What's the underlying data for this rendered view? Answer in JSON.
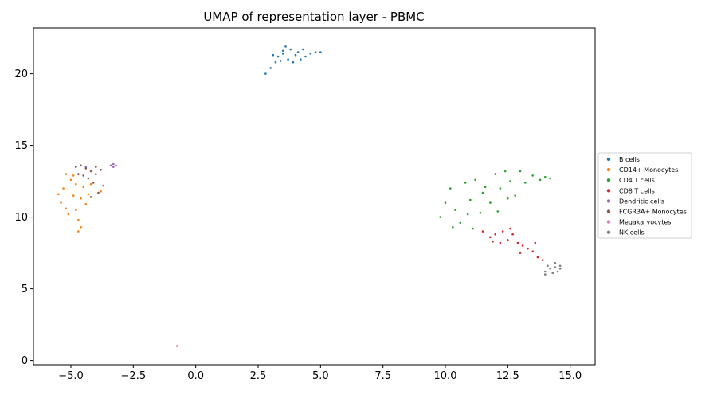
{
  "chart_data": {
    "type": "scatter",
    "title": "UMAP of representation layer - PBMC",
    "xlabel": "",
    "ylabel": "",
    "xlim": [
      -6.5,
      16.0
    ],
    "ylim": [
      -0.3,
      23.2
    ],
    "xticks": [
      -5.0,
      -2.5,
      0.0,
      2.5,
      5.0,
      7.5,
      10.0,
      12.5,
      15.0
    ],
    "xtick_labels": [
      "−5.0",
      "−2.5",
      "0.0",
      "2.5",
      "5.0",
      "7.5",
      "10.0",
      "12.5",
      "15.0"
    ],
    "yticks": [
      0,
      5,
      10,
      15,
      20
    ],
    "ytick_labels": [
      "0",
      "5",
      "10",
      "15",
      "20"
    ],
    "grid": false,
    "legend_position": "center-right outside",
    "series": [
      {
        "name": "B cells",
        "color": "#1f77b4",
        "points": [
          [
            2.8,
            20.0
          ],
          [
            3.0,
            20.4
          ],
          [
            3.2,
            20.8
          ],
          [
            3.3,
            21.2
          ],
          [
            3.5,
            21.6
          ],
          [
            3.6,
            21.9
          ],
          [
            3.8,
            21.7
          ],
          [
            4.0,
            21.3
          ],
          [
            4.2,
            21.0
          ],
          [
            4.4,
            21.2
          ],
          [
            4.6,
            21.4
          ],
          [
            4.8,
            21.5
          ],
          [
            5.0,
            21.5
          ],
          [
            3.4,
            20.9
          ],
          [
            3.7,
            21.0
          ],
          [
            3.9,
            20.8
          ],
          [
            4.1,
            21.5
          ],
          [
            3.1,
            21.3
          ],
          [
            3.5,
            21.4
          ],
          [
            4.3,
            21.7
          ]
        ]
      },
      {
        "name": "CD14+ Monocytes",
        "color": "#ff7f0e",
        "points": [
          [
            -5.4,
            11.0
          ],
          [
            -5.3,
            12.0
          ],
          [
            -5.2,
            13.0
          ],
          [
            -5.0,
            12.6
          ],
          [
            -4.9,
            11.5
          ],
          [
            -4.8,
            10.5
          ],
          [
            -4.7,
            9.8
          ],
          [
            -4.7,
            9.0
          ],
          [
            -4.6,
            9.3
          ],
          [
            -5.1,
            10.2
          ],
          [
            -4.5,
            12.1
          ],
          [
            -4.3,
            11.6
          ],
          [
            -4.4,
            10.9
          ],
          [
            -5.5,
            11.6
          ],
          [
            -4.9,
            12.9
          ],
          [
            -4.2,
            12.3
          ],
          [
            -3.8,
            11.8
          ],
          [
            -4.6,
            11.3
          ],
          [
            -5.2,
            10.6
          ],
          [
            -4.8,
            12.3
          ]
        ]
      },
      {
        "name": "CD4 T cells",
        "color": "#2ca02c",
        "points": [
          [
            9.8,
            10.0
          ],
          [
            10.0,
            11.0
          ],
          [
            10.2,
            12.0
          ],
          [
            10.4,
            10.5
          ],
          [
            10.6,
            9.6
          ],
          [
            10.8,
            12.4
          ],
          [
            11.0,
            11.2
          ],
          [
            11.2,
            12.6
          ],
          [
            11.4,
            10.3
          ],
          [
            11.6,
            12.1
          ],
          [
            11.8,
            11.0
          ],
          [
            12.0,
            13.0
          ],
          [
            12.2,
            12.0
          ],
          [
            12.4,
            13.2
          ],
          [
            12.6,
            12.5
          ],
          [
            12.8,
            11.5
          ],
          [
            13.0,
            13.2
          ],
          [
            13.2,
            12.4
          ],
          [
            13.5,
            12.9
          ],
          [
            13.8,
            12.6
          ],
          [
            14.0,
            12.8
          ],
          [
            14.2,
            12.7
          ],
          [
            10.3,
            9.3
          ],
          [
            11.1,
            9.2
          ],
          [
            12.1,
            10.4
          ],
          [
            10.9,
            10.2
          ],
          [
            11.5,
            11.7
          ],
          [
            12.5,
            11.3
          ]
        ]
      },
      {
        "name": "CD8 T cells",
        "color": "#d62728",
        "points": [
          [
            11.5,
            9.0
          ],
          [
            11.8,
            8.6
          ],
          [
            12.0,
            8.8
          ],
          [
            12.3,
            9.0
          ],
          [
            12.5,
            8.4
          ],
          [
            12.7,
            8.8
          ],
          [
            12.9,
            8.2
          ],
          [
            13.1,
            8.0
          ],
          [
            13.3,
            7.8
          ],
          [
            13.5,
            7.6
          ],
          [
            13.7,
            7.2
          ],
          [
            13.9,
            7.0
          ],
          [
            12.2,
            8.2
          ],
          [
            11.9,
            8.3
          ],
          [
            13.0,
            7.5
          ],
          [
            13.6,
            8.2
          ],
          [
            12.6,
            9.2
          ]
        ]
      },
      {
        "name": "Dendritic cells",
        "color": "#9467bd",
        "points": [
          [
            -3.4,
            13.6
          ],
          [
            -3.3,
            13.7
          ],
          [
            -3.2,
            13.6
          ],
          [
            -3.3,
            13.5
          ],
          [
            -3.7,
            12.2
          ],
          [
            -4.4,
            13.5
          ]
        ]
      },
      {
        "name": "FCGR3A+ Monocytes",
        "color": "#8c564b",
        "points": [
          [
            -4.8,
            13.5
          ],
          [
            -4.6,
            13.6
          ],
          [
            -4.4,
            13.4
          ],
          [
            -4.2,
            13.2
          ],
          [
            -4.0,
            13.0
          ],
          [
            -4.3,
            12.7
          ],
          [
            -4.1,
            12.4
          ],
          [
            -4.5,
            12.9
          ],
          [
            -3.9,
            11.7
          ],
          [
            -4.2,
            11.4
          ],
          [
            -4.7,
            13.0
          ],
          [
            -4.0,
            13.5
          ],
          [
            -3.8,
            13.3
          ]
        ]
      },
      {
        "name": "Megakaryocytes",
        "color": "#e377c2",
        "points": [
          [
            -0.75,
            1.0
          ]
        ]
      },
      {
        "name": "NK cells",
        "color": "#7f7f7f",
        "points": [
          [
            14.0,
            6.2
          ],
          [
            14.2,
            6.4
          ],
          [
            14.4,
            6.5
          ],
          [
            14.6,
            6.4
          ],
          [
            14.3,
            6.1
          ],
          [
            14.5,
            6.2
          ],
          [
            14.1,
            6.6
          ],
          [
            14.4,
            6.8
          ],
          [
            14.0,
            6.0
          ],
          [
            14.6,
            6.6
          ]
        ]
      }
    ]
  }
}
